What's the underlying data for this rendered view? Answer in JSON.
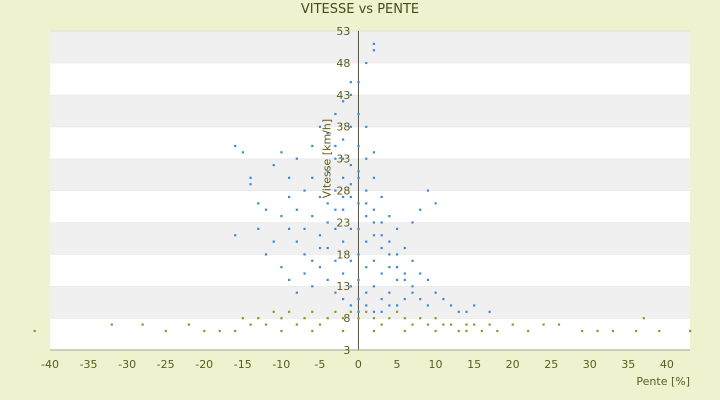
{
  "chart_data": {
    "type": "scatter",
    "title": "VITESSE vs PENTE",
    "xlabel": "Pente [%]",
    "ylabel": "Vitesse [km/h]",
    "xlim": [
      -40,
      43
    ],
    "ylim": [
      3,
      53
    ],
    "x_ticks": [
      -40,
      -35,
      -30,
      -25,
      -20,
      -15,
      -10,
      -5,
      0,
      5,
      10,
      15,
      20,
      25,
      30,
      35,
      40
    ],
    "y_ticks": [
      3,
      8,
      13,
      18,
      23,
      28,
      33,
      38,
      43,
      48,
      53
    ],
    "grid": "horizontal bands",
    "series": [
      {
        "color": "#3a8ad6",
        "points": [
          [
            -16,
            35
          ],
          [
            -15,
            34
          ],
          [
            -14,
            29
          ],
          [
            -13,
            26
          ],
          [
            -12,
            25
          ],
          [
            -14,
            30
          ],
          [
            -16,
            21
          ],
          [
            -11,
            32
          ],
          [
            -10,
            34
          ],
          [
            -9,
            30
          ],
          [
            -9,
            27
          ],
          [
            -8,
            25
          ],
          [
            -8,
            33
          ],
          [
            -7,
            22
          ],
          [
            -7,
            28
          ],
          [
            -6,
            35
          ],
          [
            -6,
            30
          ],
          [
            -6,
            24
          ],
          [
            -5,
            38
          ],
          [
            -5,
            27
          ],
          [
            -5,
            21
          ],
          [
            -4,
            37
          ],
          [
            -4,
            31
          ],
          [
            -4,
            26
          ],
          [
            -4,
            19
          ],
          [
            -3,
            40
          ],
          [
            -3,
            33
          ],
          [
            -3,
            28
          ],
          [
            -3,
            22
          ],
          [
            -3,
            17
          ],
          [
            -2,
            42
          ],
          [
            -2,
            36
          ],
          [
            -2,
            30
          ],
          [
            -2,
            25
          ],
          [
            -2,
            20
          ],
          [
            -2,
            15
          ],
          [
            -1,
            43
          ],
          [
            -1,
            38
          ],
          [
            -1,
            32
          ],
          [
            -1,
            27
          ],
          [
            -1,
            22
          ],
          [
            -1,
            17
          ],
          [
            -1,
            13
          ],
          [
            0,
            40
          ],
          [
            0,
            35
          ],
          [
            0,
            30
          ],
          [
            0,
            26
          ],
          [
            0,
            22
          ],
          [
            0,
            18
          ],
          [
            0,
            14
          ],
          [
            0,
            11
          ],
          [
            1,
            48
          ],
          [
            1,
            33
          ],
          [
            1,
            28
          ],
          [
            1,
            24
          ],
          [
            1,
            20
          ],
          [
            1,
            16
          ],
          [
            1,
            12
          ],
          [
            2,
            51
          ],
          [
            2,
            50
          ],
          [
            2,
            30
          ],
          [
            2,
            25
          ],
          [
            2,
            21
          ],
          [
            2,
            17
          ],
          [
            2,
            13
          ],
          [
            3,
            27
          ],
          [
            3,
            23
          ],
          [
            3,
            19
          ],
          [
            3,
            15
          ],
          [
            3,
            11
          ],
          [
            4,
            24
          ],
          [
            4,
            20
          ],
          [
            4,
            16
          ],
          [
            4,
            12
          ],
          [
            5,
            22
          ],
          [
            5,
            18
          ],
          [
            5,
            14
          ],
          [
            5,
            10
          ],
          [
            6,
            19
          ],
          [
            6,
            15
          ],
          [
            6,
            11
          ],
          [
            7,
            23
          ],
          [
            7,
            17
          ],
          [
            7,
            13
          ],
          [
            8,
            15
          ],
          [
            8,
            11
          ],
          [
            9,
            14
          ],
          [
            9,
            10
          ],
          [
            10,
            26
          ],
          [
            10,
            12
          ],
          [
            11,
            11
          ],
          [
            12,
            10
          ],
          [
            13,
            9
          ],
          [
            14,
            9
          ],
          [
            15,
            10
          ],
          [
            17,
            9
          ],
          [
            9,
            28
          ],
          [
            8,
            25
          ],
          [
            -10,
            16
          ],
          [
            -9,
            14
          ],
          [
            -8,
            12
          ],
          [
            -7,
            18
          ],
          [
            -6,
            13
          ],
          [
            -5,
            16
          ],
          [
            -4,
            14
          ],
          [
            -3,
            12
          ],
          [
            -2,
            11
          ],
          [
            -1,
            10
          ],
          [
            0,
            9
          ],
          [
            1,
            10
          ],
          [
            2,
            9
          ],
          [
            3,
            9
          ],
          [
            4,
            10
          ],
          [
            -12,
            18
          ],
          [
            -11,
            20
          ],
          [
            -13,
            22
          ],
          [
            -10,
            24
          ],
          [
            -9,
            22
          ],
          [
            -8,
            20
          ],
          [
            -7,
            15
          ],
          [
            -6,
            17
          ],
          [
            -5,
            19
          ],
          [
            -4,
            23
          ],
          [
            -3,
            25
          ],
          [
            -2,
            27
          ],
          [
            -1,
            29
          ],
          [
            0,
            31
          ],
          [
            1,
            26
          ],
          [
            2,
            23
          ],
          [
            3,
            21
          ],
          [
            4,
            18
          ],
          [
            5,
            16
          ],
          [
            6,
            14
          ],
          [
            7,
            12
          ],
          [
            0,
            45
          ],
          [
            -1,
            45
          ],
          [
            1,
            38
          ],
          [
            -2,
            33
          ],
          [
            -3,
            35
          ],
          [
            2,
            34
          ]
        ]
      },
      {
        "color": "#8a9a1e",
        "points": [
          [
            -42,
            6
          ],
          [
            -32,
            7
          ],
          [
            -28,
            7
          ],
          [
            -25,
            6
          ],
          [
            -22,
            7
          ],
          [
            -20,
            6
          ],
          [
            -18,
            6
          ],
          [
            -16,
            6
          ],
          [
            -15,
            8
          ],
          [
            -14,
            7
          ],
          [
            -13,
            8
          ],
          [
            -12,
            7
          ],
          [
            -11,
            9
          ],
          [
            -10,
            8
          ],
          [
            -9,
            9
          ],
          [
            -8,
            7
          ],
          [
            -7,
            8
          ],
          [
            -6,
            9
          ],
          [
            -5,
            7
          ],
          [
            -4,
            8
          ],
          [
            -3,
            9
          ],
          [
            -2,
            8
          ],
          [
            -1,
            9
          ],
          [
            0,
            8
          ],
          [
            1,
            9
          ],
          [
            2,
            8
          ],
          [
            3,
            7
          ],
          [
            4,
            8
          ],
          [
            5,
            9
          ],
          [
            6,
            8
          ],
          [
            7,
            7
          ],
          [
            8,
            8
          ],
          [
            9,
            7
          ],
          [
            10,
            8
          ],
          [
            11,
            7
          ],
          [
            12,
            7
          ],
          [
            13,
            6
          ],
          [
            14,
            7
          ],
          [
            15,
            7
          ],
          [
            16,
            6
          ],
          [
            17,
            7
          ],
          [
            18,
            6
          ],
          [
            20,
            7
          ],
          [
            22,
            6
          ],
          [
            24,
            7
          ],
          [
            26,
            7
          ],
          [
            29,
            6
          ],
          [
            31,
            6
          ],
          [
            33,
            6
          ],
          [
            36,
            6
          ],
          [
            37,
            8
          ],
          [
            39,
            6
          ],
          [
            43,
            6
          ],
          [
            -10,
            6
          ],
          [
            -6,
            6
          ],
          [
            -2,
            6
          ],
          [
            2,
            6
          ],
          [
            6,
            6
          ],
          [
            10,
            6
          ],
          [
            14,
            6
          ]
        ]
      }
    ]
  }
}
